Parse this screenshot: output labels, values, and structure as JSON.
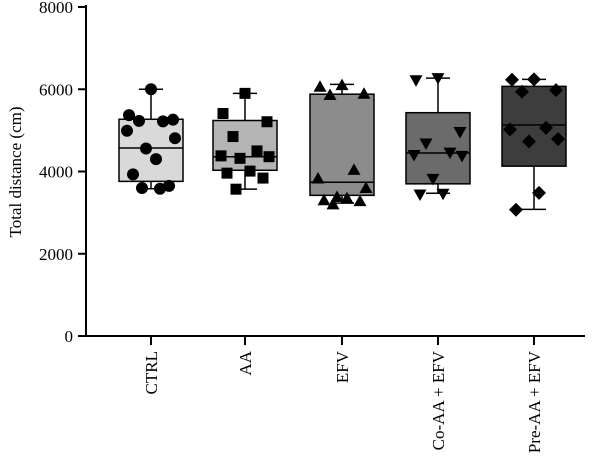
{
  "chart_data": {
    "type": "box",
    "ylabel": "Total distance (cm)",
    "ylim": [
      0,
      8000
    ],
    "yticks": [
      0,
      2000,
      4000,
      6000,
      8000
    ],
    "yticks_text": [
      "0",
      "2000",
      "4000",
      "6000",
      "8000"
    ],
    "grid": false,
    "legend": "none",
    "categories": [
      "CTRL",
      "AA",
      "EFV",
      "Co-AA + EFV",
      "Pre-AA + EFV"
    ],
    "groups": [
      {
        "label": "CTRL",
        "color": "#d9d9d9",
        "marker": "circle",
        "min": 3580,
        "q1": 3760,
        "median": 4570,
        "q3": 5270,
        "max": 6000,
        "points": [
          6000,
          5370,
          5260,
          5230,
          5220,
          4990,
          4810,
          4560,
          4300,
          3930,
          3650,
          3600,
          3580
        ]
      },
      {
        "label": "AA",
        "color": "#b4b4b4",
        "marker": "square",
        "min": 3570,
        "q1": 4030,
        "median": 4360,
        "q3": 5240,
        "max": 5900,
        "points": [
          5900,
          5410,
          5210,
          4850,
          4500,
          4380,
          4360,
          4320,
          4010,
          3960,
          3840,
          3570
        ]
      },
      {
        "label": "EFV",
        "color": "#8c8c8c",
        "marker": "triangle-up",
        "min": 3230,
        "q1": 3420,
        "median": 3740,
        "q3": 5880,
        "max": 6120,
        "points": [
          6100,
          6060,
          5890,
          5860,
          4040,
          3830,
          3600,
          3380,
          3350,
          3300,
          3280,
          3200
        ]
      },
      {
        "label": "Co-AA + EFV",
        "color": "#6b6b6b",
        "marker": "triangle-down",
        "min": 3470,
        "q1": 3700,
        "median": 4450,
        "q3": 5430,
        "max": 6270,
        "points": [
          6270,
          6220,
          4960,
          4680,
          4460,
          4400,
          4380,
          3820,
          3460,
          3440
        ]
      },
      {
        "label": "Pre-AA + EFV",
        "color": "#3d3d3d",
        "marker": "diamond",
        "min": 3080,
        "q1": 4130,
        "median": 5130,
        "q3": 6070,
        "max": 6240,
        "points": [
          6240,
          6230,
          5980,
          5940,
          5060,
          5020,
          4790,
          4730,
          3480,
          3070
        ]
      }
    ]
  }
}
